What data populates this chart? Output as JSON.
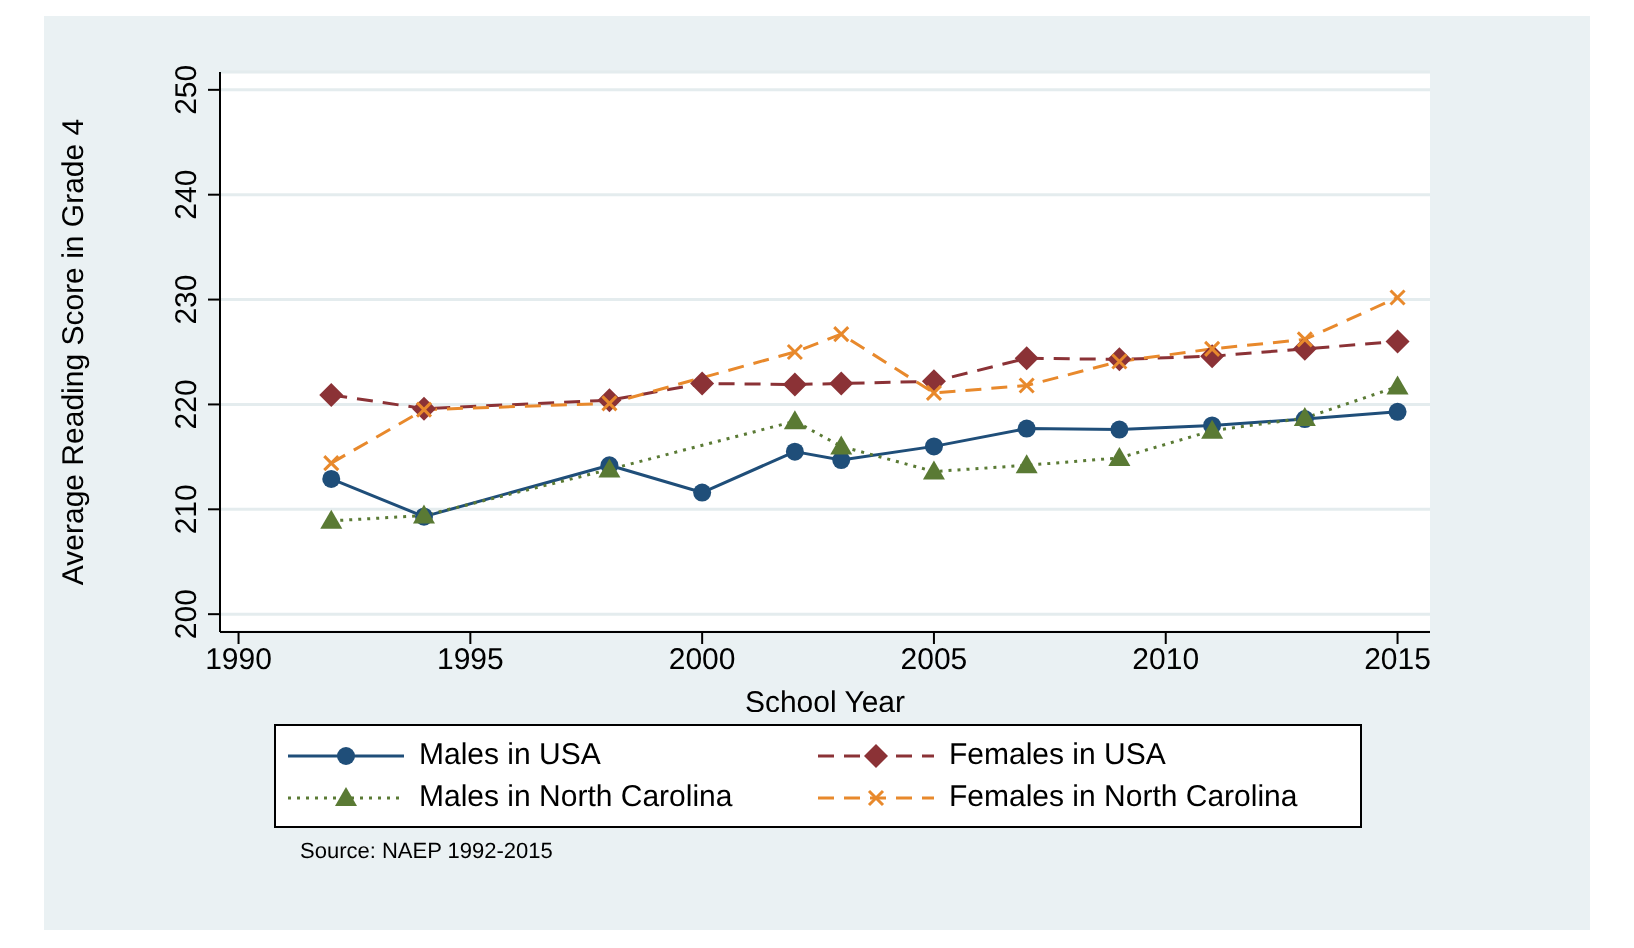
{
  "chart_data": {
    "type": "line",
    "xlabel": "School Year",
    "ylabel": "Average Reading Score in Grade 4",
    "x": [
      1992,
      1994,
      1998,
      2000,
      2002,
      2003,
      2005,
      2007,
      2009,
      2011,
      2013,
      2015
    ],
    "series": [
      {
        "name": "Males in USA",
        "color": "#1f4e79",
        "marker": "circle",
        "line_style": "solid",
        "values": [
          212.9,
          209.3,
          214.2,
          211.6,
          215.5,
          214.7,
          216,
          217.7,
          217.6,
          218,
          218.6,
          219.3
        ]
      },
      {
        "name": "Females in USA",
        "color": "#8b3236",
        "marker": "diamond",
        "line_style": "dashed",
        "values": [
          220.9,
          219.6,
          220.4,
          222,
          221.9,
          222,
          222.2,
          224.4,
          224.3,
          224.6,
          225.3,
          226
        ]
      },
      {
        "name": "Males in North Carolina",
        "color": "#5a7a34",
        "marker": "triangle",
        "line_style": "dotted",
        "values": [
          208.9,
          209.4,
          213.8,
          null,
          218.4,
          216,
          213.6,
          214.2,
          214.9,
          217.5,
          218.7,
          221.7
        ]
      },
      {
        "name": "Females in North Carolina",
        "color": "#e8892c",
        "marker": "cross",
        "line_style": "dashed",
        "values": [
          214.4,
          219.5,
          220.1,
          null,
          225,
          226.7,
          221.1,
          221.8,
          224.1,
          225.3,
          226.2,
          230.2
        ]
      }
    ],
    "xlim": [
      1989.6,
      2015.7
    ],
    "xticks": [
      1990,
      1995,
      2000,
      2005,
      2010,
      2015
    ],
    "ylim": [
      198.3,
      251.7
    ],
    "yticks": [
      200,
      210,
      220,
      230,
      240,
      250
    ],
    "grid": "y",
    "legend": "bottom",
    "annotations": [
      "Source: NAEP 1992-2015"
    ]
  }
}
